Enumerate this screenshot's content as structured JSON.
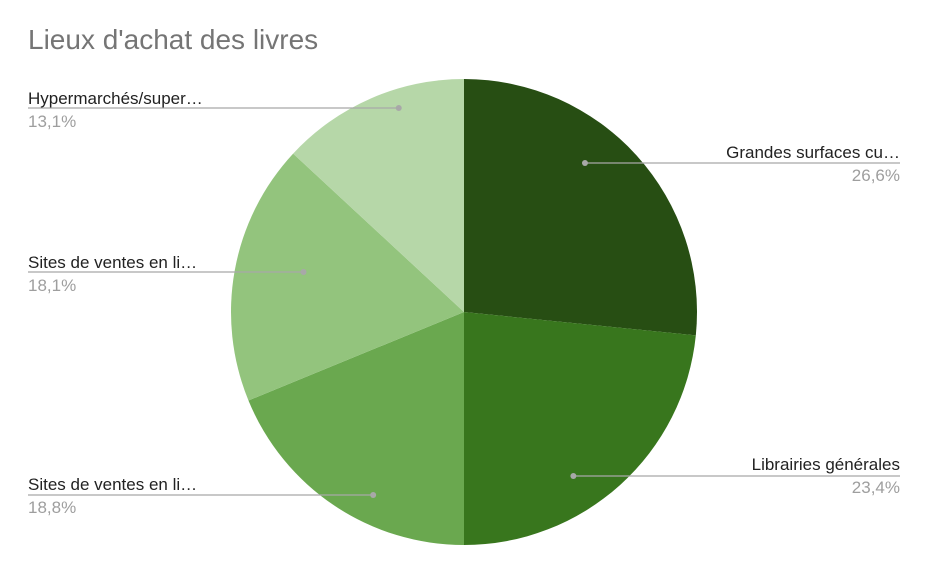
{
  "chart_data": {
    "type": "pie",
    "title": "Lieux d'achat des livres",
    "slices": [
      {
        "label": "Grandes surfaces cu…",
        "value": 26.6,
        "value_label": "26,6%",
        "color": "#274e13"
      },
      {
        "label": "Librairies générales",
        "value": 23.4,
        "value_label": "23,4%",
        "color": "#38761d"
      },
      {
        "label": "Sites de ventes en li…",
        "value": 18.8,
        "value_label": "18,8%",
        "color": "#6aa84f"
      },
      {
        "label": "Sites de ventes en li…",
        "value": 18.1,
        "value_label": "18,1%",
        "color": "#93c47d"
      },
      {
        "label": "Hypermarchés/super…",
        "value": 13.1,
        "value_label": "13,1%",
        "color": "#b6d7a8"
      }
    ],
    "start_angle": "12 o'clock",
    "direction": "clockwise",
    "legend": "none"
  }
}
